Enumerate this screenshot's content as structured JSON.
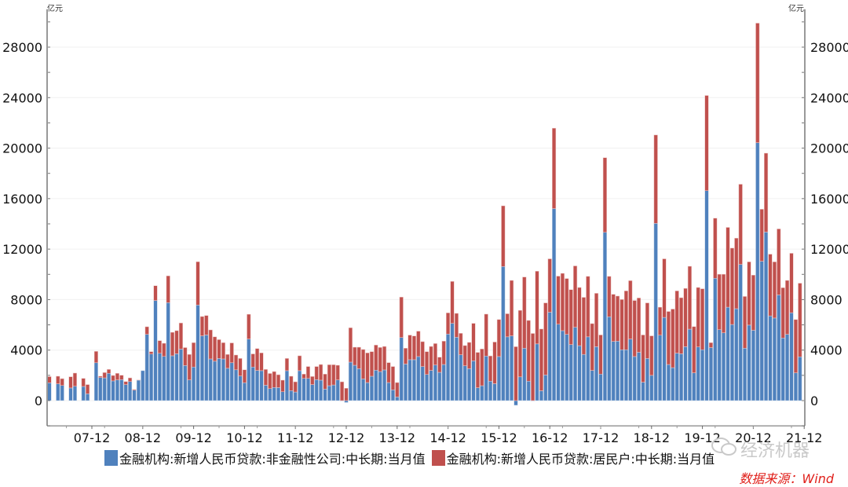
{
  "chart_data": {
    "type": "bar",
    "stacked": true,
    "unit_left": "亿元",
    "unit_right": "亿元",
    "ylim": [
      -2000,
      31000
    ],
    "yticks": [
      0,
      4000,
      8000,
      12000,
      16000,
      20000,
      24000,
      28000
    ],
    "xtick_labels": [
      "07-12",
      "08-12",
      "09-12",
      "10-12",
      "11-12",
      "12-12",
      "13-12",
      "14-12",
      "15-12",
      "16-12",
      "17-12",
      "18-12",
      "19-12",
      "20-12",
      "21-12"
    ],
    "grid": true,
    "legend_position": "bottom",
    "categories": [
      "07-02",
      "07-03",
      "07-04",
      "07-05",
      "07-06",
      "07-07",
      "07-08",
      "07-09",
      "07-10",
      "07-11",
      "07-12",
      "08-01",
      "08-02",
      "08-03",
      "08-04",
      "08-05",
      "08-06",
      "08-07",
      "08-08",
      "08-09",
      "08-10",
      "08-11",
      "08-12",
      "09-01",
      "09-02",
      "09-03",
      "09-04",
      "09-05",
      "09-06",
      "09-07",
      "09-08",
      "09-09",
      "09-10",
      "09-11",
      "09-12",
      "10-01",
      "10-02",
      "10-03",
      "10-04",
      "10-05",
      "10-06",
      "10-07",
      "10-08",
      "10-09",
      "10-10",
      "10-11",
      "10-12",
      "11-01",
      "11-02",
      "11-03",
      "11-04",
      "11-05",
      "11-06",
      "11-07",
      "11-08",
      "11-09",
      "11-10",
      "11-11",
      "11-12",
      "12-01",
      "12-02",
      "12-03",
      "12-04",
      "12-05",
      "12-06",
      "12-07",
      "12-08",
      "12-09",
      "12-10",
      "12-11",
      "12-12",
      "13-01",
      "13-02",
      "13-03",
      "13-04",
      "13-05",
      "13-06",
      "13-07",
      "13-08",
      "13-09",
      "13-10",
      "13-11",
      "13-12",
      "14-01",
      "14-02",
      "14-03",
      "14-04",
      "14-05",
      "14-06",
      "14-07",
      "14-08",
      "14-09",
      "14-10",
      "14-11",
      "14-12",
      "15-01",
      "15-02",
      "15-03",
      "15-04",
      "15-05",
      "15-06",
      "15-07",
      "15-08",
      "15-09",
      "15-10",
      "15-11",
      "15-12",
      "16-01",
      "16-02",
      "16-03",
      "16-04",
      "16-05",
      "16-06",
      "16-07",
      "16-08",
      "16-09",
      "16-10",
      "16-11",
      "16-12",
      "17-01",
      "17-02",
      "17-03",
      "17-04",
      "17-05",
      "17-06",
      "17-07",
      "17-08",
      "17-09",
      "17-10",
      "17-11",
      "17-12",
      "18-01",
      "18-02",
      "18-03",
      "18-04",
      "18-05",
      "18-06",
      "18-07",
      "18-08",
      "18-09",
      "18-10",
      "18-11",
      "18-12",
      "19-01",
      "19-02",
      "19-03",
      "19-04",
      "19-05",
      "19-06",
      "19-07",
      "19-08",
      "19-09",
      "19-10",
      "19-11",
      "19-12",
      "20-01",
      "20-02",
      "20-03",
      "20-04",
      "20-05",
      "20-06",
      "20-07",
      "20-08",
      "20-09",
      "20-10",
      "20-11",
      "20-12",
      "21-01",
      "21-02",
      "21-03",
      "21-04",
      "21-05",
      "21-06",
      "21-07",
      "21-08",
      "21-09",
      "21-10",
      "21-11"
    ],
    "series": [
      {
        "name": "金融机构:新增人民币贷款:非金融性公司:中长期:当月值",
        "color": "#4f81bd",
        "values": [
          1410,
          null,
          1330,
          1200,
          null,
          1000,
          1140,
          null,
          1120,
          540,
          null,
          3000,
          1830,
          1800,
          2160,
          1560,
          1640,
          1660,
          1270,
          1510,
          830,
          1620,
          2370,
          5250,
          3690,
          7930,
          3750,
          3500,
          7760,
          3550,
          3710,
          4080,
          2780,
          1640,
          2660,
          7570,
          5130,
          5200,
          3300,
          3120,
          3340,
          3300,
          2560,
          3000,
          2440,
          1950,
          1420,
          4880,
          2660,
          2390,
          2370,
          1220,
          950,
          1040,
          1030,
          700,
          2370,
          790,
          680,
          2370,
          1760,
          1760,
          1270,
          1660,
          1620,
          910,
          1180,
          1240,
          1640,
          0,
          -150,
          3050,
          2800,
          2530,
          1720,
          1430,
          1930,
          2410,
          2300,
          2430,
          1430,
          850,
          290,
          5000,
          2900,
          3240,
          3240,
          3490,
          2700,
          2070,
          2390,
          2820,
          2240,
          2860,
          5270,
          6120,
          5020,
          3630,
          2760,
          2530,
          3150,
          1020,
          1180,
          3530,
          1540,
          1340,
          3490,
          10620,
          5050,
          5130,
          -370,
          1880,
          4150,
          1540,
          -30,
          4490,
          780,
          2030,
          7000,
          15210,
          6050,
          5540,
          5250,
          4440,
          5810,
          4350,
          3660,
          5050,
          2390,
          4270,
          2100,
          13330,
          6640,
          4690,
          4710,
          4030,
          4030,
          4880,
          3490,
          3830,
          1460,
          3340,
          2000,
          14040,
          5180,
          6590,
          2860,
          2610,
          3760,
          3710,
          4270,
          5660,
          2200,
          4250,
          4030,
          16630,
          4200,
          9690,
          5620,
          5370,
          7400,
          6030,
          7280,
          10790,
          4150,
          5980,
          5570,
          20430,
          11040,
          13350,
          6710,
          6540,
          8370,
          4960,
          5250,
          6960,
          2200,
          3470
        ]
      },
      {
        "name": "金融机构:新增人民币贷款:居民户:中长期:当月值",
        "color": "#c0504d",
        "values": [
          490,
          null,
          600,
          540,
          null,
          890,
          1040,
          null,
          640,
          730,
          null,
          900,
          100,
          420,
          310,
          430,
          520,
          350,
          240,
          290,
          60,
          20,
          0,
          600,
          190,
          1170,
          1000,
          1040,
          2120,
          1860,
          1830,
          2070,
          1420,
          2020,
          1930,
          3430,
          1530,
          1540,
          2300,
          1930,
          1490,
          1290,
          1100,
          1570,
          1170,
          1390,
          1020,
          1960,
          1040,
          1730,
          1410,
          1250,
          1200,
          1260,
          1020,
          920,
          970,
          1140,
          810,
          1180,
          340,
          940,
          640,
          1040,
          1240,
          1190,
          1660,
          1600,
          1160,
          1490,
          980,
          2720,
          1430,
          1700,
          2330,
          2350,
          1950,
          1990,
          1910,
          1860,
          1580,
          1850,
          1140,
          3200,
          1250,
          1950,
          1880,
          2010,
          1970,
          1810,
          1900,
          1700,
          1200,
          1850,
          1680,
          3320,
          1890,
          1700,
          1600,
          2080,
          2970,
          2800,
          2910,
          3320,
          2000,
          3300,
          2930,
          4810,
          1830,
          4390,
          4270,
          5270,
          5640,
          4810,
          5320,
          5760,
          4890,
          5710,
          4230,
          6370,
          3810,
          4540,
          4420,
          4350,
          4860,
          4610,
          4520,
          4790,
          3710,
          4230,
          3100,
          5910,
          3200,
          3730,
          3570,
          3980,
          4660,
          4620,
          4440,
          4300,
          3740,
          4400,
          3130,
          7000,
          2220,
          4640,
          4200,
          4640,
          4930,
          4440,
          4620,
          4980,
          3660,
          4710,
          4830,
          7540,
          390,
          4760,
          4390,
          4640,
          6320,
          6050,
          5590,
          6350,
          4100,
          5010,
          4370,
          9470,
          4120,
          6250,
          4890,
          4450,
          5230,
          3980,
          4270,
          4710,
          4220,
          5830
        ]
      }
    ]
  },
  "legend": {
    "items": [
      "金融机构:新增人民币贷款:非金融性公司:中长期:当月值",
      "金融机构:新增人民币贷款:居民户:中长期:当月值"
    ]
  },
  "source": "数据来源：Wind",
  "watermark": {
    "text": "经济机器",
    "icon": "wechat-icon"
  }
}
